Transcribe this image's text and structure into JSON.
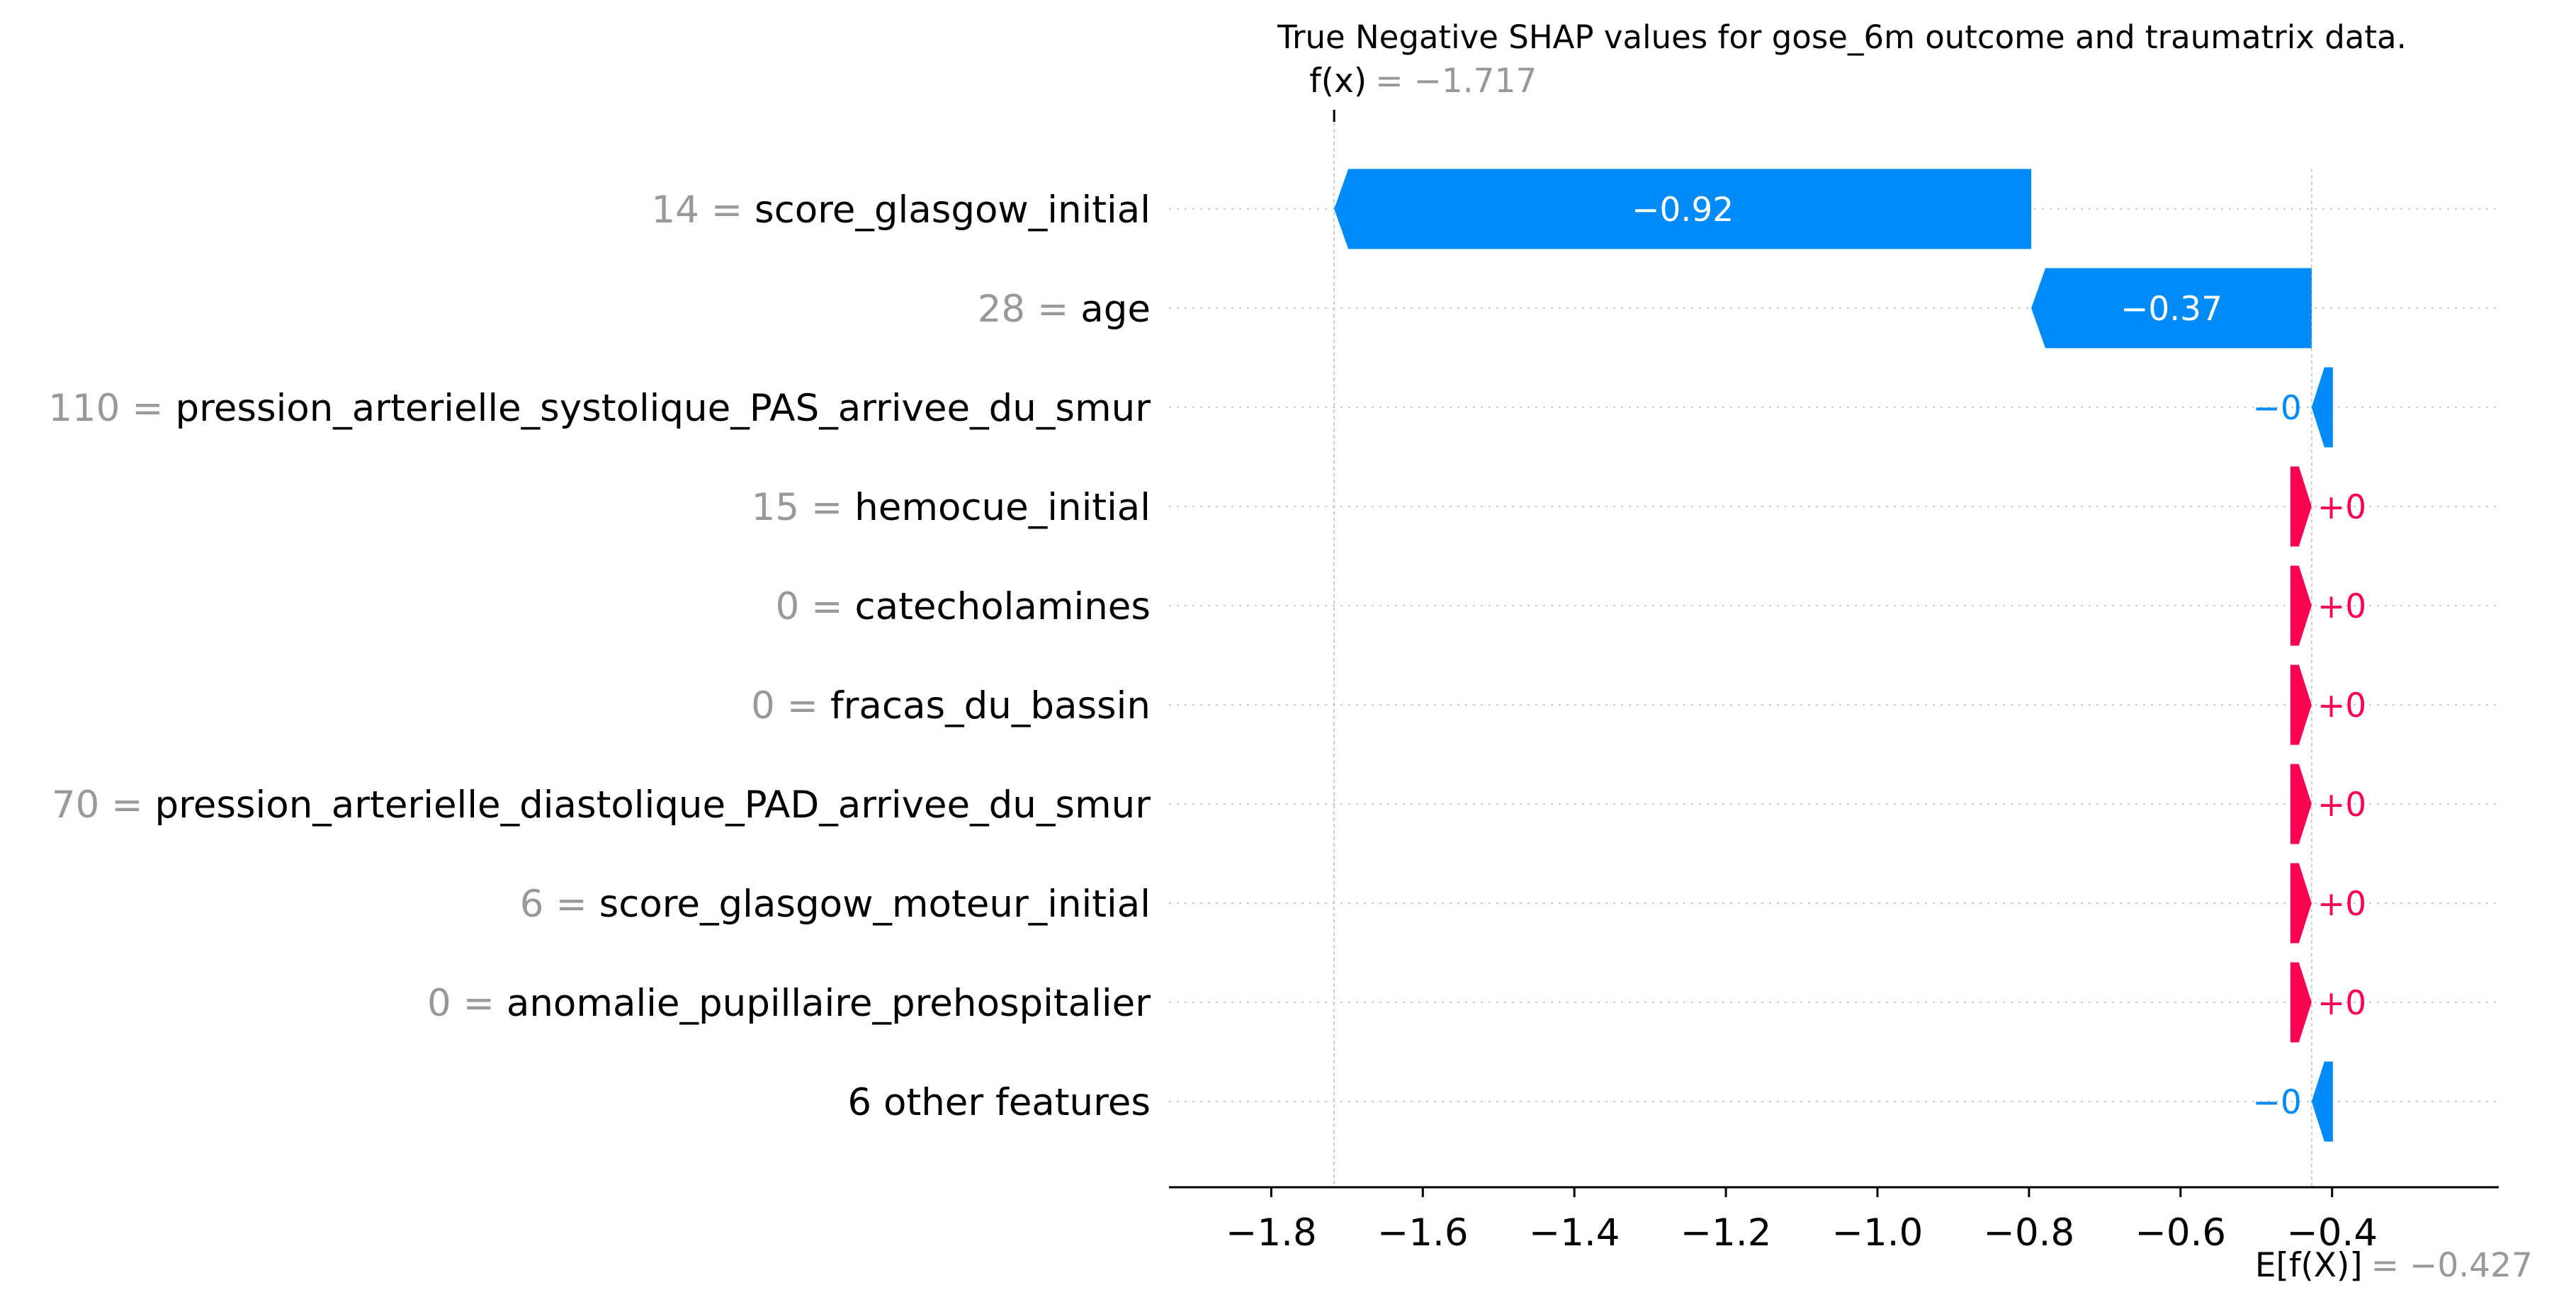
{
  "chart_data": {
    "type": "bar",
    "subtype": "shap-waterfall",
    "title": "True Negative SHAP values for gose_6m outcome and traumatrix data.",
    "features": [
      {
        "value": "14",
        "name": "score_glasgow_initial",
        "shap": -0.92,
        "label": "−0.92"
      },
      {
        "value": "28",
        "name": "age",
        "shap": -0.37,
        "label": "−0.37"
      },
      {
        "value": "110",
        "name": "pression_arterielle_systolique_PAS_arrivee_du_smur",
        "shap": -0.0,
        "label": "−0"
      },
      {
        "value": "15",
        "name": "hemocue_initial",
        "shap": 0.0,
        "label": "+0"
      },
      {
        "value": "0",
        "name": "catecholamines",
        "shap": 0.0,
        "label": "+0"
      },
      {
        "value": "0",
        "name": "fracas_du_bassin",
        "shap": 0.0,
        "label": "+0"
      },
      {
        "value": "70",
        "name": "pression_arterielle_diastolique_PAD_arrivee_du_smur",
        "shap": 0.0,
        "label": "+0"
      },
      {
        "value": "6",
        "name": "score_glasgow_moteur_initial",
        "shap": 0.0,
        "label": "+0"
      },
      {
        "value": "0",
        "name": "anomalie_pupillaire_prehospitalier",
        "shap": 0.0,
        "label": "+0"
      },
      {
        "value": "",
        "name": "6 other features",
        "shap": -0.0,
        "label": "−0"
      }
    ],
    "fx": {
      "symbol": "f(x)",
      "value": "= −1.717",
      "numeric": -1.717
    },
    "ex": {
      "symbol": "E[f(X)]",
      "value": "= −0.427",
      "numeric": -0.427
    },
    "xlim": [
      -1.935,
      -0.18
    ],
    "xticks": [
      -1.8,
      -1.6,
      -1.4,
      -1.2,
      -1.0,
      -0.8,
      -0.6,
      -0.4
    ],
    "xtick_labels": [
      "−1.8",
      "−1.6",
      "−1.4",
      "−1.2",
      "−1.0",
      "−0.8",
      "−0.6",
      "−0.4"
    ],
    "grid": "horizontal dotted per row",
    "colors": {
      "negative": "#008bfb",
      "positive": "#ff0051",
      "axis": "#000000",
      "muted": "#999999",
      "guide": "#cccccc"
    }
  }
}
